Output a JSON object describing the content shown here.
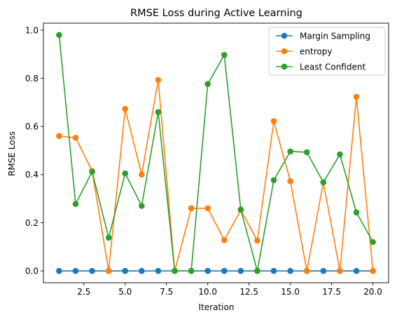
{
  "chart_data": {
    "type": "line",
    "title": "RMSE Loss during Active Learning",
    "xlabel": "Iteration",
    "ylabel": "RMSE Loss",
    "xlim": [
      0.05,
      20.95
    ],
    "ylim": [
      -0.049,
      1.029
    ],
    "xticks": [
      2.5,
      5.0,
      7.5,
      10.0,
      12.5,
      15.0,
      17.5,
      20.0
    ],
    "xtick_labels": [
      "2.5",
      "5.0",
      "7.5",
      "10.0",
      "12.5",
      "15.0",
      "17.5",
      "20.0"
    ],
    "yticks": [
      0.0,
      0.2,
      0.4,
      0.6,
      0.8,
      1.0
    ],
    "ytick_labels": [
      "0.0",
      "0.2",
      "0.4",
      "0.6",
      "0.8",
      "1.0"
    ],
    "grid": false,
    "legend_position": "top-right",
    "x": [
      1,
      2,
      3,
      4,
      5,
      6,
      7,
      8,
      9,
      10,
      11,
      12,
      13,
      14,
      15,
      16,
      17,
      18,
      19,
      20
    ],
    "series": [
      {
        "name": "Margin Sampling",
        "color": "#1f77b4",
        "values": [
          0,
          0,
          0,
          0,
          0,
          0,
          0,
          0,
          0,
          0,
          0,
          0,
          0,
          0,
          0,
          0,
          0,
          0,
          0,
          0
        ]
      },
      {
        "name": "entropy",
        "color": "#ff7f0e",
        "values": [
          0.56,
          0.553,
          0.415,
          0.0,
          0.673,
          0.4,
          0.793,
          0.0,
          0.26,
          0.26,
          0.128,
          0.253,
          0.126,
          0.622,
          0.373,
          0.0,
          0.368,
          0.0,
          0.723,
          0.0
        ]
      },
      {
        "name": "Least Confident",
        "color": "#2ca02c",
        "values": [
          0.98,
          0.278,
          0.412,
          0.138,
          0.405,
          0.27,
          0.66,
          0.0,
          0.0,
          0.776,
          0.897,
          0.255,
          0.0,
          0.377,
          0.496,
          0.493,
          0.368,
          0.484,
          0.243,
          0.12
        ]
      }
    ]
  }
}
